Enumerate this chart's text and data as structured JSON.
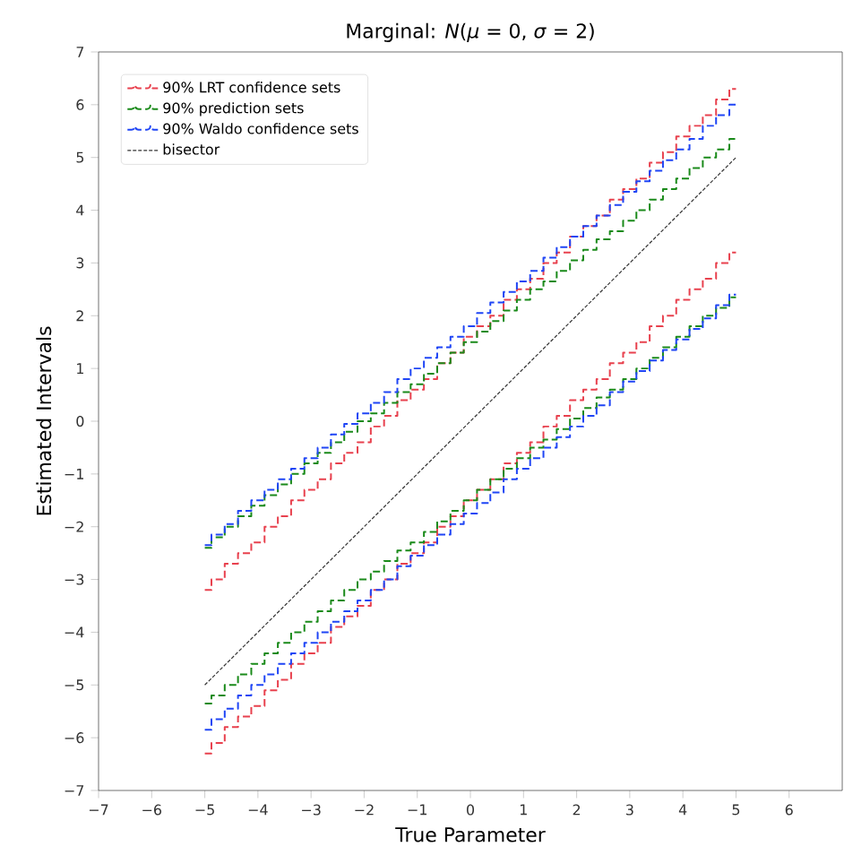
{
  "chart_data": {
    "type": "step",
    "title": "Marginal: *N*(*μ* = 0, *σ* = 2)",
    "xlabel": "True Parameter",
    "ylabel": "Estimated Intervals",
    "x": [
      -5,
      -4.75,
      -4.5,
      -4.25,
      -4,
      -3.75,
      -3.5,
      -3.25,
      -3,
      -2.75,
      -2.5,
      -2.25,
      -2,
      -1.75,
      -1.5,
      -1.25,
      -1,
      -0.75,
      -0.5,
      -0.25,
      0,
      0.25,
      0.5,
      0.75,
      1,
      1.25,
      1.5,
      1.75,
      2,
      2.25,
      2.5,
      2.75,
      3,
      3.25,
      3.5,
      3.75,
      4,
      4.25,
      4.5,
      4.75,
      5
    ],
    "series": [
      {
        "name": "90% LRT confidence sets",
        "color": "#e8414e",
        "values": [
          -3.2,
          -3.0,
          -2.7,
          -2.5,
          -2.3,
          -2.0,
          -1.8,
          -1.5,
          -1.3,
          -1.1,
          -0.8,
          -0.6,
          -0.4,
          -0.1,
          0.1,
          0.4,
          0.6,
          0.8,
          1.1,
          1.3,
          1.6,
          1.8,
          2.0,
          2.3,
          2.5,
          2.7,
          3.0,
          3.2,
          3.5,
          3.7,
          3.9,
          4.2,
          4.4,
          4.6,
          4.9,
          5.1,
          5.4,
          5.6,
          5.8,
          6.1,
          6.3
        ]
      },
      {
        "name": "90% prediction sets",
        "color": "#1a8a1a",
        "values": [
          -2.4,
          -2.2,
          -2.0,
          -1.8,
          -1.6,
          -1.4,
          -1.2,
          -1.0,
          -0.8,
          -0.6,
          -0.4,
          -0.2,
          0.0,
          0.15,
          0.35,
          0.55,
          0.7,
          0.9,
          1.1,
          1.3,
          1.5,
          1.7,
          1.9,
          2.1,
          2.3,
          2.5,
          2.65,
          2.85,
          3.05,
          3.25,
          3.45,
          3.6,
          3.8,
          4.0,
          4.2,
          4.4,
          4.6,
          4.8,
          5.0,
          5.15,
          5.35
        ]
      },
      {
        "name": "90% Waldo confidence sets",
        "color": "#1f45f5",
        "values": [
          -2.35,
          -2.15,
          -1.95,
          -1.7,
          -1.5,
          -1.3,
          -1.1,
          -0.9,
          -0.7,
          -0.5,
          -0.25,
          -0.05,
          0.15,
          0.35,
          0.55,
          0.8,
          1.0,
          1.2,
          1.4,
          1.6,
          1.8,
          2.05,
          2.25,
          2.45,
          2.65,
          2.85,
          3.1,
          3.3,
          3.5,
          3.7,
          3.9,
          4.1,
          4.35,
          4.55,
          4.75,
          4.95,
          5.15,
          5.35,
          5.6,
          5.8,
          6.0
        ]
      },
      {
        "name": "bisector",
        "type": "line",
        "color": "#333333",
        "x": [
          -5,
          5
        ],
        "values": [
          -5,
          5
        ]
      },
      {
        "color": "#e8414e",
        "values": [
          -6.3,
          -6.1,
          -5.8,
          -5.6,
          -5.4,
          -5.1,
          -4.9,
          -4.6,
          -4.4,
          -4.2,
          -3.9,
          -3.7,
          -3.5,
          -3.2,
          -3.0,
          -2.7,
          -2.5,
          -2.3,
          -2.0,
          -1.8,
          -1.5,
          -1.3,
          -1.1,
          -0.8,
          -0.6,
          -0.4,
          -0.1,
          0.1,
          0.4,
          0.6,
          0.8,
          1.1,
          1.3,
          1.5,
          1.8,
          2.0,
          2.3,
          2.5,
          2.7,
          3.0,
          3.2
        ]
      },
      {
        "color": "#1a8a1a",
        "values": [
          -5.35,
          -5.2,
          -5.0,
          -4.8,
          -4.6,
          -4.4,
          -4.2,
          -4.0,
          -3.8,
          -3.6,
          -3.4,
          -3.2,
          -3.0,
          -2.85,
          -2.65,
          -2.45,
          -2.3,
          -2.1,
          -1.9,
          -1.7,
          -1.5,
          -1.3,
          -1.1,
          -0.9,
          -0.7,
          -0.5,
          -0.35,
          -0.15,
          0.05,
          0.25,
          0.45,
          0.6,
          0.8,
          1.0,
          1.2,
          1.4,
          1.6,
          1.8,
          2.0,
          2.15,
          2.35
        ]
      },
      {
        "color": "#1f45f5",
        "values": [
          -5.85,
          -5.65,
          -5.45,
          -5.2,
          -5.0,
          -4.8,
          -4.6,
          -4.4,
          -4.2,
          -4.0,
          -3.8,
          -3.6,
          -3.4,
          -3.2,
          -3.0,
          -2.75,
          -2.55,
          -2.35,
          -2.15,
          -1.95,
          -1.75,
          -1.55,
          -1.35,
          -1.1,
          -0.9,
          -0.7,
          -0.5,
          -0.3,
          -0.1,
          0.1,
          0.3,
          0.55,
          0.75,
          0.95,
          1.15,
          1.35,
          1.55,
          1.75,
          1.95,
          2.2,
          2.4
        ]
      }
    ],
    "xlim": [
      -7,
      7
    ],
    "xticks": [
      {
        "value": -7,
        "label": "−7"
      },
      {
        "value": -6,
        "label": "−6"
      },
      {
        "value": -5,
        "label": "−5"
      },
      {
        "value": -4,
        "label": "−4"
      },
      {
        "value": -3,
        "label": "−3"
      },
      {
        "value": -2,
        "label": "−2"
      },
      {
        "value": -1,
        "label": "−1"
      },
      0,
      1,
      2,
      3,
      4,
      5,
      6
    ],
    "ylim": [
      -7,
      7
    ],
    "yticks": [
      {
        "value": -7,
        "label": "−7"
      },
      {
        "value": -6,
        "label": "−6"
      },
      {
        "value": -5,
        "label": "−5"
      },
      {
        "value": -4,
        "label": "−4"
      },
      {
        "value": -3,
        "label": "−3"
      },
      {
        "value": -2,
        "label": "−2"
      },
      {
        "value": -1,
        "label": "−1"
      },
      0,
      1,
      2,
      3,
      4,
      5,
      6,
      7
    ],
    "legend": "top left",
    "grid": false,
    "line_style": "dashed",
    "marker": "none"
  }
}
